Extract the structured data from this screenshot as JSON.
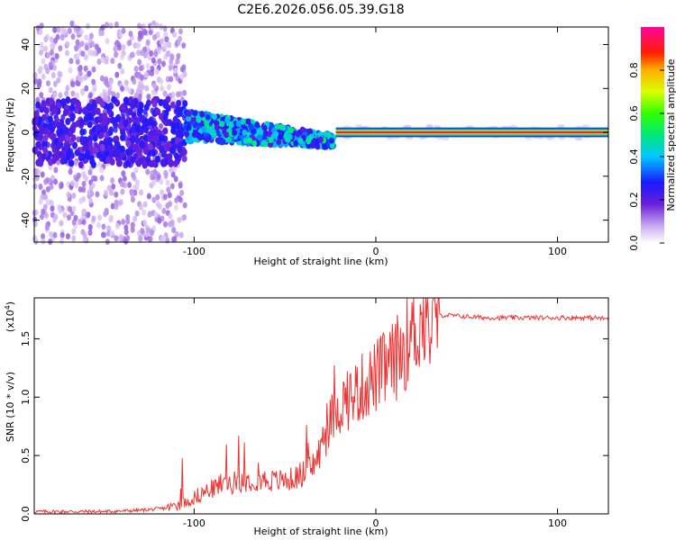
{
  "title": "C2E6.2026.056.05.39.G18",
  "colorbar": {
    "label": "Normalized spectral amplitude",
    "ticks": [
      "0.0",
      "0.2",
      "0.4",
      "0.6",
      "0.8"
    ],
    "tick_values": [
      0.0,
      0.2,
      0.4,
      0.6,
      0.8
    ],
    "range": [
      0,
      1
    ]
  },
  "chart_data": [
    {
      "type": "heatmap",
      "title": "C2E6.2026.056.05.39.G18",
      "xlabel": "Height of straight line (km)",
      "ylabel": "Frequency (Hz)",
      "xlim": [
        -188,
        128
      ],
      "ylim": [
        -50,
        48
      ],
      "xticks": [
        -100,
        0,
        100
      ],
      "xtick_labels": [
        "-100",
        "0",
        "100"
      ],
      "yticks": [
        -40,
        -20,
        0,
        20,
        40
      ],
      "ytick_labels": [
        "-40",
        "-20",
        "0",
        "20",
        "40"
      ],
      "description_points": [
        {
          "x_range": [
            -188,
            -105
          ],
          "freq_spread": 50,
          "amplitude": "low, scattered"
        },
        {
          "x_range": [
            -105,
            -25
          ],
          "freq_spread": 12,
          "amplitude": "medium, drifting from 3 Hz to -4 Hz"
        },
        {
          "x_range": [
            -25,
            128
          ],
          "freq_center": 0,
          "amplitude": "high, steady tone"
        }
      ]
    },
    {
      "type": "line",
      "xlabel": "Height of straight line (km)",
      "ylabel": "SNR (10 * v/v)",
      "y_multiplier_label": "(x10",
      "y_multiplier_exp": "4",
      "xlim": [
        -188,
        128
      ],
      "ylim": [
        0,
        1.85
      ],
      "xticks": [
        -100,
        0,
        100
      ],
      "xtick_labels": [
        "-100",
        "0",
        "100"
      ],
      "yticks": [
        0.0,
        0.5,
        1.0,
        1.5
      ],
      "ytick_labels": [
        "0.0",
        "0.5",
        "1.0",
        "1.5"
      ],
      "series": [
        {
          "name": "SNR",
          "color": "#ee3333",
          "x": [
            -188,
            -170,
            -150,
            -130,
            -115,
            -105,
            -95,
            -85,
            -75,
            -65,
            -55,
            -45,
            -35,
            -30,
            -26,
            -22,
            -18,
            -14,
            -10,
            -6,
            -2,
            2,
            6,
            10,
            14,
            18,
            22,
            26,
            30,
            35,
            40,
            50,
            60,
            70,
            80,
            90,
            100,
            110,
            120,
            128
          ],
          "values": [
            0.02,
            0.02,
            0.02,
            0.03,
            0.05,
            0.1,
            0.18,
            0.25,
            0.28,
            0.3,
            0.28,
            0.3,
            0.4,
            0.55,
            0.75,
            0.9,
            0.95,
            1.0,
            1.05,
            1.1,
            1.15,
            1.2,
            1.25,
            1.3,
            1.4,
            1.5,
            1.6,
            1.65,
            1.68,
            1.7,
            1.7,
            1.69,
            1.68,
            1.68,
            1.68,
            1.68,
            1.68,
            1.68,
            1.68,
            1.67
          ]
        }
      ]
    }
  ]
}
